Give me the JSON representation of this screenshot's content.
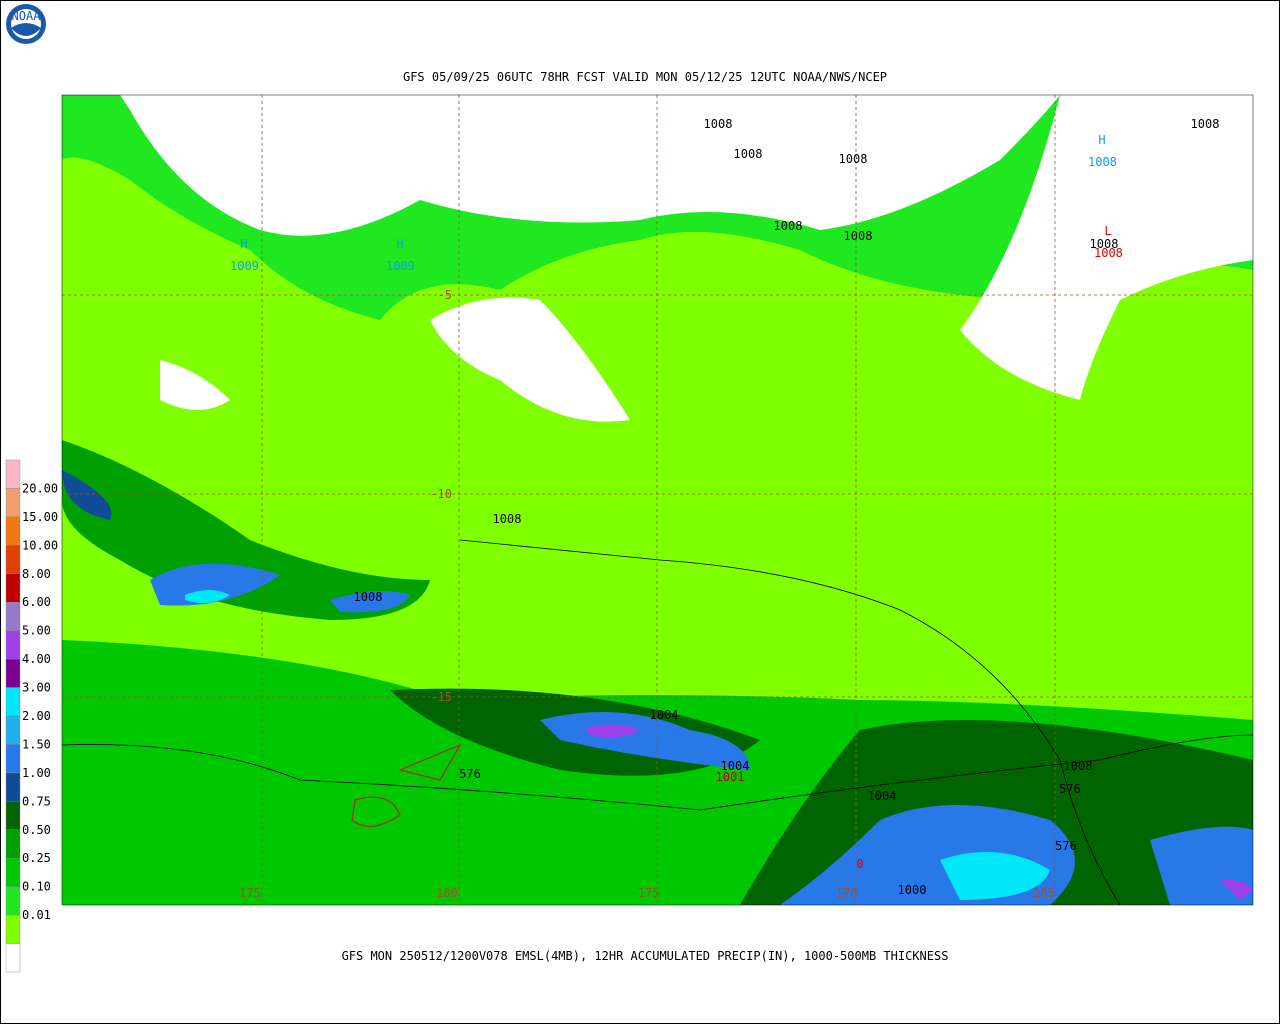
{
  "header": {
    "title": "GFS 05/09/25 06UTC 78HR FCST VALID MON 05/12/25 12UTC NOAA/NWS/NCEP",
    "logo": "NOAA"
  },
  "footer": {
    "caption": "GFS MON 250512/1200V078 EMSL(4MB), 12HR ACCUMULATED PRECIP(IN), 1000-500MB THICKNESS"
  },
  "legend": {
    "labels": [
      "20.00",
      "15.00",
      "10.00",
      "8.00",
      "6.00",
      "5.00",
      "4.00",
      "3.00",
      "2.00",
      "1.50",
      "1.00",
      "0.75",
      "0.50",
      "0.25",
      "0.10",
      "0.01"
    ],
    "colors": [
      "#f8b8c8",
      "#f0a070",
      "#f07810",
      "#e04000",
      "#c00000",
      "#9878c8",
      "#a040e8",
      "#780090",
      "#00e8f8",
      "#20b0f0",
      "#2878e8",
      "#104c98",
      "#006400",
      "#00a000",
      "#00c800",
      "#20e820",
      "#80ff00",
      "#ffffff"
    ]
  },
  "map": {
    "lat_labels": [
      "-5",
      "-10",
      "-15"
    ],
    "lon_labels": [
      "175",
      "180",
      "-175",
      "-170",
      "-185"
    ],
    "centers": [
      {
        "symbol": "H",
        "pressure": "1009"
      },
      {
        "symbol": "H",
        "pressure": "1009"
      },
      {
        "symbol": "H",
        "pressure": "1008"
      },
      {
        "symbol": "L",
        "pressure": "1008"
      }
    ],
    "contour_labels": [
      "1008",
      "1008",
      "1008",
      "1008",
      "1008",
      "1008",
      "1008",
      "1008",
      "1008",
      "1004",
      "1004",
      "1001",
      "1004",
      "1008",
      "576",
      "576",
      "576",
      "1000",
      "0"
    ]
  }
}
